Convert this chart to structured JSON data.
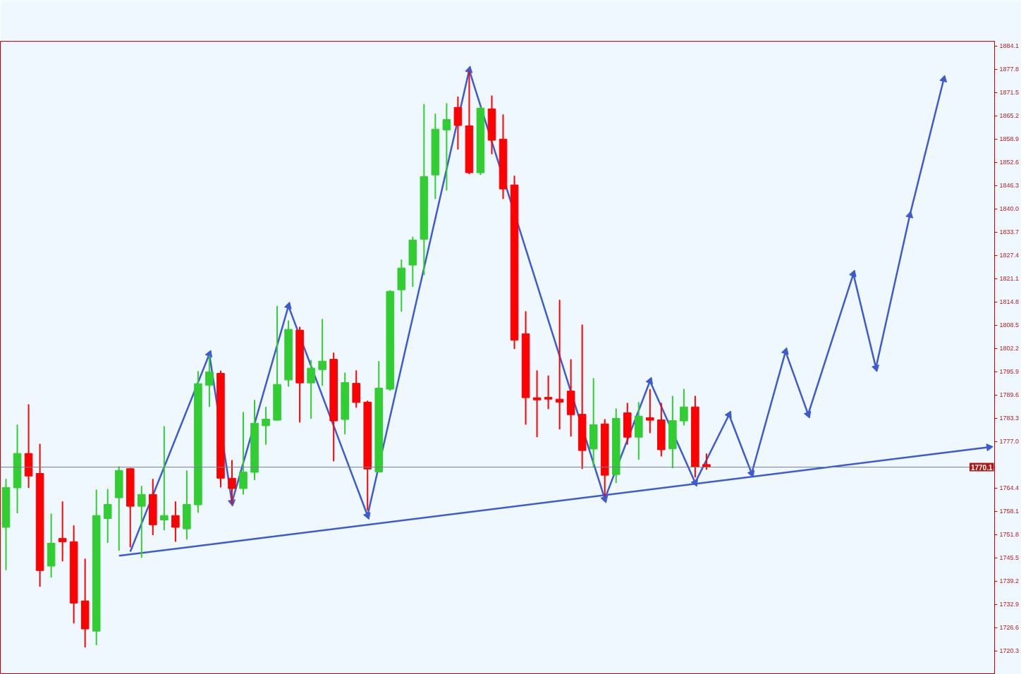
{
  "chart_data": {
    "type": "candlestick",
    "categories": [
      null,
      null,
      null,
      null,
      null,
      null,
      null,
      null,
      null,
      null,
      null,
      null,
      null,
      null,
      null,
      null,
      null,
      null,
      null,
      null,
      null,
      null,
      null,
      null,
      null,
      null,
      null,
      null,
      null,
      null,
      null,
      null,
      null,
      null,
      null,
      null,
      null,
      null,
      null,
      null,
      null,
      null,
      null,
      null,
      null,
      null,
      null,
      null,
      null,
      null,
      null,
      null,
      null,
      null,
      null,
      null,
      null,
      null,
      null,
      null,
      null,
      null,
      null,
      null,
      null,
      null,
      null,
      null,
      null,
      null,
      null,
      null,
      null,
      null,
      null,
      null,
      null,
      null,
      null,
      null,
      null,
      null,
      null,
      null,
      null,
      null,
      null,
      null
    ],
    "ohlc": [
      [
        1753.8,
        1766.9,
        1742.2,
        1764.6
      ],
      [
        1764.5,
        1781.6,
        1757.6,
        1773.8
      ],
      [
        1773.8,
        1787.1,
        1764.5,
        1767.7
      ],
      [
        1768.4,
        1776.4,
        1737.7,
        1742.1
      ],
      [
        1743.3,
        1757.5,
        1740.2,
        1749.5
      ],
      [
        1750.8,
        1760.8,
        1744.6,
        1749.9
      ],
      [
        1749.9,
        1754.3,
        1727.8,
        1733.3
      ],
      [
        1733.9,
        1745.3,
        1721.3,
        1726.3
      ],
      [
        1725.7,
        1764.0,
        1721.9,
        1757.0
      ],
      [
        1756.2,
        1764.2,
        1749.6,
        1760.0
      ],
      [
        1761.8,
        1770.3,
        1747.5,
        1769.2
      ],
      [
        1769.7,
        1769.9,
        1748.4,
        1759.5
      ],
      [
        1759.5,
        1765.0,
        1745.6,
        1762.7
      ],
      [
        1762.7,
        1766.9,
        1751.7,
        1754.5
      ],
      [
        1755.8,
        1781.2,
        1753.0,
        1757.0
      ],
      [
        1757.0,
        1760.8,
        1749.9,
        1753.8
      ],
      [
        1753.4,
        1769.2,
        1750.5,
        1760.0
      ],
      [
        1759.9,
        1796.1,
        1757.8,
        1792.7
      ],
      [
        1792.3,
        1800.3,
        1786.4,
        1795.9
      ],
      [
        1795.5,
        1796.2,
        1764.6,
        1767.1
      ],
      [
        1767.1,
        1772.0,
        1760.1,
        1764.3
      ],
      [
        1764.3,
        1785.0,
        1762.7,
        1768.8
      ],
      [
        1768.7,
        1788.3,
        1766.6,
        1782.0
      ],
      [
        1781.3,
        1786.4,
        1776.2,
        1783.1
      ],
      [
        1782.8,
        1813.7,
        1782.7,
        1792.5
      ],
      [
        1793.7,
        1809.8,
        1791.9,
        1807.4
      ],
      [
        1807.2,
        1808.1,
        1782.2,
        1792.9
      ],
      [
        1792.9,
        1799.1,
        1783.2,
        1796.9
      ],
      [
        1796.5,
        1810.2,
        1792.1,
        1798.8
      ],
      [
        1799.3,
        1801.1,
        1771.7,
        1782.6
      ],
      [
        1783.0,
        1795.7,
        1779.0,
        1793.0
      ],
      [
        1792.8,
        1796.3,
        1786.2,
        1787.6
      ],
      [
        1787.7,
        1788.1,
        1758.4,
        1769.6
      ],
      [
        1768.8,
        1798.8,
        1768.8,
        1791.5
      ],
      [
        1791.2,
        1818.0,
        1790.8,
        1817.7
      ],
      [
        1818.1,
        1826.3,
        1812.2,
        1824.0
      ],
      [
        1824.8,
        1832.5,
        1818.9,
        1831.6
      ],
      [
        1831.8,
        1868.4,
        1822.1,
        1848.8
      ],
      [
        1849.2,
        1865.8,
        1842.7,
        1861.6
      ],
      [
        1861.4,
        1868.6,
        1845.0,
        1864.2
      ],
      [
        1867.5,
        1870.4,
        1856.1,
        1862.6
      ],
      [
        1862.5,
        1877.4,
        1849.4,
        1849.8
      ],
      [
        1849.8,
        1867.6,
        1849.2,
        1867.3
      ],
      [
        1867.1,
        1870.7,
        1854.8,
        1858.6
      ],
      [
        1858.9,
        1865.6,
        1842.7,
        1845.4
      ],
      [
        1846.5,
        1849.0,
        1802.1,
        1804.5
      ],
      [
        1806.2,
        1812.3,
        1781.6,
        1788.9
      ],
      [
        1788.9,
        1796.3,
        1778.2,
        1788.3
      ],
      [
        1789.0,
        1794.9,
        1785.8,
        1788.5
      ],
      [
        1788.5,
        1815.4,
        1780.3,
        1787.7
      ],
      [
        1790.7,
        1799.3,
        1778.4,
        1784.3
      ],
      [
        1784.4,
        1808.7,
        1769.6,
        1774.6
      ],
      [
        1775.0,
        1794.2,
        1770.0,
        1781.6
      ],
      [
        1781.8,
        1783.1,
        1762.2,
        1767.9
      ],
      [
        1768.1,
        1786.0,
        1765.8,
        1783.3
      ],
      [
        1784.8,
        1787.5,
        1776.2,
        1778.2
      ],
      [
        1778.2,
        1787.7,
        1772.1,
        1783.9
      ],
      [
        1783.5,
        1791.2,
        1779.3,
        1782.8
      ],
      [
        1782.9,
        1787.5,
        1773.0,
        1774.8
      ],
      [
        1775.1,
        1789.4,
        1769.8,
        1782.7
      ],
      [
        1782.6,
        1791.3,
        1781.4,
        1786.4
      ],
      [
        1786.4,
        1789.4,
        1767.3,
        1770.2
      ],
      [
        1770.8,
        1773.8,
        1769.4,
        1770.1
      ],
      null,
      null,
      null,
      null,
      null,
      null,
      null,
      null,
      null,
      null,
      null,
      null,
      null,
      null,
      null,
      null,
      null,
      null,
      null,
      null,
      null,
      null,
      null,
      null,
      null
    ],
    "colors": [
      "#32cd32",
      "#32cd32",
      "#ff0000",
      "#ff0000",
      "#32cd32",
      "#ff0000",
      "#ff0000",
      "#ff0000",
      "#32cd32",
      "#32cd32",
      "#32cd32",
      "#ff0000",
      "#32cd32",
      "#ff0000",
      "#32cd32",
      "#ff0000",
      "#32cd32",
      "#32cd32",
      "#32cd32",
      "#ff0000",
      "#ff0000",
      "#32cd32",
      "#32cd32",
      "#32cd32",
      "#32cd32",
      "#32cd32",
      "#ff0000",
      "#32cd32",
      "#32cd32",
      "#ff0000",
      "#32cd32",
      "#ff0000",
      "#ff0000",
      "#32cd32",
      "#32cd32",
      "#32cd32",
      "#32cd32",
      "#32cd32",
      "#32cd32",
      "#32cd32",
      "#ff0000",
      "#ff0000",
      "#32cd32",
      "#ff0000",
      "#ff0000",
      "#ff0000",
      "#ff0000",
      "#ff0000",
      "#ff0000",
      "#ff0000",
      "#ff0000",
      "#ff0000",
      "#32cd32",
      "#ff0000",
      "#32cd32",
      "#ff0000",
      "#32cd32",
      "#ff0000",
      "#ff0000",
      "#32cd32",
      "#32cd32",
      "#ff0000",
      "#ff0000",
      null,
      null,
      null,
      null,
      null,
      null,
      null,
      null,
      null,
      null,
      null,
      null,
      null,
      null,
      null,
      null,
      null,
      null,
      null,
      null,
      null,
      null,
      null,
      null,
      null
    ],
    "series": [
      {
        "type": "line",
        "color": "#3c5ad2",
        "marker": "triangle",
        "values": [
          null,
          null,
          null,
          null,
          null,
          null,
          null,
          null,
          null,
          null,
          null,
          1747.2,
          null,
          null,
          null,
          null,
          null,
          null,
          1800.7,
          null,
          1760.6,
          null,
          null,
          null,
          null,
          1813.7,
          null,
          null,
          null,
          null,
          null,
          null,
          1757.0,
          null,
          null,
          null,
          null,
          null,
          null,
          null,
          null,
          1877.6,
          null,
          null,
          null,
          null,
          null,
          null,
          null,
          null,
          null,
          null,
          null,
          1761.5,
          null,
          null,
          null,
          1793.4,
          null,
          null,
          null,
          1765.9,
          null,
          null,
          1784.3,
          null,
          1768.4,
          null,
          null,
          1801.4,
          null,
          1784.4,
          null,
          null,
          null,
          1822.4,
          null,
          1797.0,
          null,
          null,
          1838.3,
          null,
          null,
          1875.1,
          null,
          null,
          null,
          null
        ]
      },
      {
        "type": "line",
        "color": "#3c5ad2",
        "marker": "triangle",
        "values": [
          null,
          null,
          null,
          null,
          null,
          null,
          null,
          null,
          null,
          null,
          1746.1,
          null,
          null,
          null,
          null,
          null,
          null,
          null,
          null,
          null,
          null,
          null,
          null,
          null,
          null,
          null,
          null,
          null,
          null,
          null,
          null,
          null,
          null,
          null,
          null,
          null,
          null,
          null,
          null,
          null,
          null,
          null,
          null,
          null,
          null,
          null,
          null,
          null,
          null,
          null,
          null,
          null,
          null,
          null,
          null,
          null,
          null,
          null,
          null,
          null,
          null,
          null,
          null,
          null,
          null,
          null,
          null,
          null,
          null,
          null,
          null,
          null,
          null,
          null,
          null,
          null,
          null,
          null,
          null,
          null,
          null,
          null,
          null,
          null,
          null,
          null,
          null,
          1775.5
        ]
      }
    ],
    "ylim": [
      1714.0,
      1885.4
    ],
    "yticks": [
      1884.1,
      1877.8,
      1871.5,
      1865.2,
      1858.9,
      1852.6,
      1846.3,
      {
        "value": 1840,
        "label": "1840.0"
      },
      1833.7,
      1827.4,
      1821.1,
      1814.8,
      1808.5,
      1802.2,
      1795.9,
      1789.6,
      1783.3,
      {
        "value": 1777,
        "label": "1777.0"
      },
      1764.4,
      1758.1,
      1751.8,
      1745.5,
      1739.2,
      1732.9,
      1726.6,
      1720.3
    ],
    "ref_lines": [
      {
        "axis": "y",
        "value": 1770.1,
        "label": "1770.1",
        "color": "#708090"
      }
    ],
    "tick_labels": "y"
  }
}
